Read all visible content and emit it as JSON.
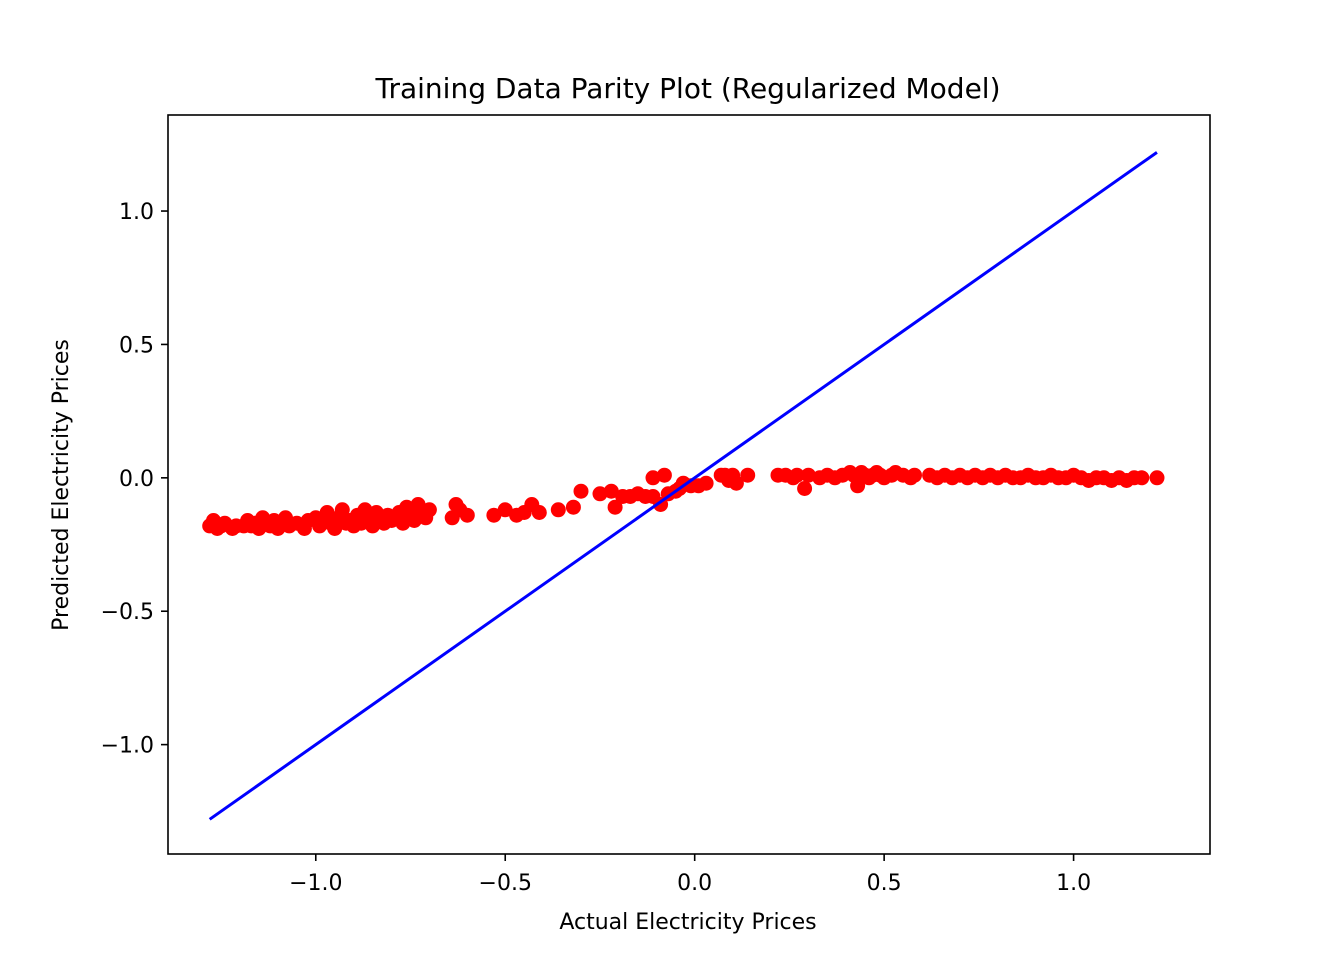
{
  "chart_data": {
    "type": "scatter",
    "title": "Training Data Parity Plot (Regularized Model)",
    "xlabel": "Actual Electricity Prices",
    "ylabel": "Predicted Electricity Prices",
    "xlim": [
      -1.39,
      1.36
    ],
    "ylim": [
      -1.41,
      1.36
    ],
    "xticks": [
      -1.0,
      -0.5,
      0.0,
      0.5,
      1.0
    ],
    "xtick_labels": [
      "−1.0",
      "−0.5",
      "0.0",
      "0.5",
      "1.0"
    ],
    "yticks": [
      -1.0,
      -0.5,
      0.0,
      0.5,
      1.0
    ],
    "ytick_labels": [
      "−1.0",
      "−0.5",
      "0.0",
      "0.5",
      "1.0"
    ],
    "grid": false,
    "colors": {
      "points": "#ff0000",
      "parity_line": "#0000ff"
    },
    "parity_line": {
      "x": [
        -1.28,
        1.22
      ],
      "y": [
        -1.28,
        1.22
      ]
    },
    "series": [
      {
        "points": [
          [
            -1.28,
            -0.18
          ],
          [
            -1.27,
            -0.16
          ],
          [
            -1.26,
            -0.19
          ],
          [
            -1.25,
            -0.18
          ],
          [
            -1.24,
            -0.17
          ],
          [
            -1.22,
            -0.19
          ],
          [
            -1.21,
            -0.18
          ],
          [
            -1.19,
            -0.18
          ],
          [
            -1.18,
            -0.16
          ],
          [
            -1.17,
            -0.18
          ],
          [
            -1.16,
            -0.17
          ],
          [
            -1.15,
            -0.19
          ],
          [
            -1.14,
            -0.15
          ],
          [
            -1.13,
            -0.17
          ],
          [
            -1.12,
            -0.18
          ],
          [
            -1.11,
            -0.16
          ],
          [
            -1.1,
            -0.19
          ],
          [
            -1.09,
            -0.17
          ],
          [
            -1.08,
            -0.15
          ],
          [
            -1.07,
            -0.18
          ],
          [
            -1.05,
            -0.17
          ],
          [
            -1.03,
            -0.19
          ],
          [
            -1.02,
            -0.16
          ],
          [
            -1.0,
            -0.15
          ],
          [
            -0.99,
            -0.18
          ],
          [
            -0.98,
            -0.16
          ],
          [
            -0.97,
            -0.13
          ],
          [
            -0.96,
            -0.17
          ],
          [
            -0.95,
            -0.19
          ],
          [
            -0.94,
            -0.15
          ],
          [
            -0.93,
            -0.12
          ],
          [
            -0.92,
            -0.17
          ],
          [
            -0.91,
            -0.16
          ],
          [
            -0.9,
            -0.18
          ],
          [
            -0.89,
            -0.14
          ],
          [
            -0.88,
            -0.17
          ],
          [
            -0.87,
            -0.12
          ],
          [
            -0.86,
            -0.15
          ],
          [
            -0.85,
            -0.18
          ],
          [
            -0.84,
            -0.13
          ],
          [
            -0.83,
            -0.16
          ],
          [
            -0.82,
            -0.17
          ],
          [
            -0.81,
            -0.14
          ],
          [
            -0.8,
            -0.16
          ],
          [
            -0.79,
            -0.15
          ],
          [
            -0.78,
            -0.13
          ],
          [
            -0.77,
            -0.17
          ],
          [
            -0.76,
            -0.11
          ],
          [
            -0.75,
            -0.14
          ],
          [
            -0.74,
            -0.16
          ],
          [
            -0.73,
            -0.1
          ],
          [
            -0.72,
            -0.13
          ],
          [
            -0.71,
            -0.15
          ],
          [
            -0.7,
            -0.12
          ],
          [
            -0.64,
            -0.15
          ],
          [
            -0.63,
            -0.1
          ],
          [
            -0.62,
            -0.12
          ],
          [
            -0.6,
            -0.14
          ],
          [
            -0.53,
            -0.14
          ],
          [
            -0.5,
            -0.12
          ],
          [
            -0.47,
            -0.14
          ],
          [
            -0.45,
            -0.13
          ],
          [
            -0.43,
            -0.1
          ],
          [
            -0.41,
            -0.13
          ],
          [
            -0.36,
            -0.12
          ],
          [
            -0.32,
            -0.11
          ],
          [
            -0.3,
            -0.05
          ],
          [
            -0.25,
            -0.06
          ],
          [
            -0.22,
            -0.05
          ],
          [
            -0.21,
            -0.11
          ],
          [
            -0.19,
            -0.07
          ],
          [
            -0.17,
            -0.07
          ],
          [
            -0.15,
            -0.06
          ],
          [
            -0.13,
            -0.07
          ],
          [
            -0.11,
            -0.07
          ],
          [
            -0.11,
            0.0
          ],
          [
            -0.09,
            -0.1
          ],
          [
            -0.08,
            0.01
          ],
          [
            -0.07,
            -0.06
          ],
          [
            -0.05,
            -0.05
          ],
          [
            -0.04,
            -0.04
          ],
          [
            -0.03,
            -0.02
          ],
          [
            -0.01,
            -0.03
          ],
          [
            0.01,
            -0.03
          ],
          [
            0.03,
            -0.02
          ],
          [
            0.07,
            0.01
          ],
          [
            0.08,
            0.01
          ],
          [
            0.09,
            -0.01
          ],
          [
            0.1,
            0.01
          ],
          [
            0.11,
            -0.02
          ],
          [
            0.14,
            0.01
          ],
          [
            0.22,
            0.01
          ],
          [
            0.24,
            0.01
          ],
          [
            0.26,
            0.0
          ],
          [
            0.27,
            0.01
          ],
          [
            0.29,
            -0.04
          ],
          [
            0.3,
            0.01
          ],
          [
            0.33,
            0.0
          ],
          [
            0.35,
            0.01
          ],
          [
            0.37,
            0.0
          ],
          [
            0.39,
            0.01
          ],
          [
            0.41,
            0.02
          ],
          [
            0.42,
            0.01
          ],
          [
            0.43,
            -0.03
          ],
          [
            0.44,
            0.02
          ],
          [
            0.45,
            0.01
          ],
          [
            0.46,
            0.0
          ],
          [
            0.47,
            0.01
          ],
          [
            0.48,
            0.02
          ],
          [
            0.49,
            0.01
          ],
          [
            0.5,
            0.0
          ],
          [
            0.52,
            0.01
          ],
          [
            0.53,
            0.02
          ],
          [
            0.55,
            0.01
          ],
          [
            0.57,
            0.0
          ],
          [
            0.58,
            0.01
          ],
          [
            0.62,
            0.01
          ],
          [
            0.64,
            0.0
          ],
          [
            0.66,
            0.01
          ],
          [
            0.68,
            0.0
          ],
          [
            0.7,
            0.01
          ],
          [
            0.72,
            0.0
          ],
          [
            0.74,
            0.01
          ],
          [
            0.76,
            0.0
          ],
          [
            0.78,
            0.01
          ],
          [
            0.8,
            0.0
          ],
          [
            0.82,
            0.01
          ],
          [
            0.84,
            0.0
          ],
          [
            0.86,
            0.0
          ],
          [
            0.88,
            0.01
          ],
          [
            0.9,
            0.0
          ],
          [
            0.92,
            0.0
          ],
          [
            0.94,
            0.01
          ],
          [
            0.96,
            0.0
          ],
          [
            0.98,
            0.0
          ],
          [
            1.0,
            0.01
          ],
          [
            1.02,
            0.0
          ],
          [
            1.04,
            -0.01
          ],
          [
            1.06,
            0.0
          ],
          [
            1.08,
            0.0
          ],
          [
            1.1,
            -0.01
          ],
          [
            1.12,
            0.0
          ],
          [
            1.14,
            -0.01
          ],
          [
            1.16,
            0.0
          ],
          [
            1.18,
            0.0
          ],
          [
            1.22,
            0.0
          ]
        ]
      }
    ]
  }
}
